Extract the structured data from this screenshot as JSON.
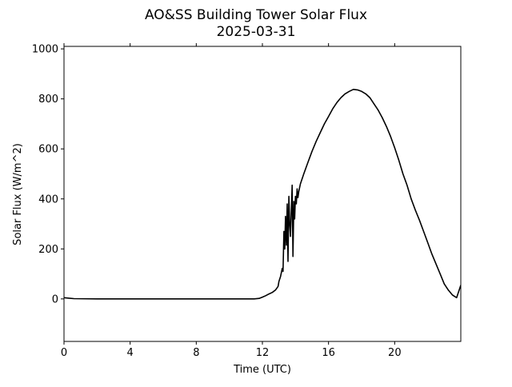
{
  "chart_data": {
    "type": "line",
    "title": "AO&SS Building Tower Solar Flux",
    "subtitle": "2025-03-31",
    "xlabel": "Time (UTC)",
    "ylabel": "Solar Flux (W/m^2)",
    "xlim": [
      0,
      24
    ],
    "ylim": [
      -170,
      1010
    ],
    "xticks": [
      0,
      4,
      8,
      12,
      16,
      20
    ],
    "xtick_labels": [
      "0",
      "4",
      "8",
      "12",
      "16",
      "20"
    ],
    "yticks": [
      0,
      200,
      400,
      600,
      800,
      1000
    ],
    "ytick_labels": [
      "0",
      "200",
      "400",
      "600",
      "800",
      "1000"
    ],
    "grid": false,
    "series": [
      {
        "name": "",
        "color": "#000000",
        "x": [
          0,
          0.3,
          0.6,
          2,
          4,
          6,
          8,
          10,
          11.5,
          11.8,
          12.0,
          12.2,
          12.4,
          12.6,
          12.8,
          12.95,
          13.0,
          13.1,
          13.2,
          13.25,
          13.3,
          13.35,
          13.4,
          13.45,
          13.5,
          13.55,
          13.6,
          13.65,
          13.7,
          13.75,
          13.8,
          13.85,
          13.9,
          13.95,
          14.0,
          14.05,
          14.1,
          14.15,
          14.2,
          14.25,
          14.3,
          14.5,
          14.75,
          15.0,
          15.25,
          15.5,
          15.75,
          16.0,
          16.25,
          16.5,
          16.75,
          17.0,
          17.25,
          17.5,
          17.75,
          18.0,
          18.25,
          18.5,
          18.75,
          19.0,
          19.25,
          19.5,
          19.75,
          20.0,
          20.25,
          20.5,
          20.75,
          21.0,
          21.25,
          21.5,
          21.75,
          22.0,
          22.25,
          22.5,
          22.75,
          23.0,
          23.25,
          23.5,
          23.75,
          24.0
        ],
        "y": [
          5,
          3,
          1,
          0,
          0,
          0,
          0,
          0,
          0,
          2,
          7,
          13,
          20,
          26,
          36,
          50,
          70,
          90,
          122,
          110,
          270,
          200,
          330,
          215,
          380,
          150,
          410,
          300,
          250,
          360,
          455,
          170,
          390,
          320,
          410,
          380,
          440,
          405,
          430,
          445,
          460,
          500,
          545,
          590,
          630,
          665,
          700,
          730,
          760,
          785,
          805,
          820,
          830,
          838,
          836,
          830,
          820,
          805,
          780,
          755,
          725,
          690,
          650,
          605,
          555,
          500,
          455,
          400,
          355,
          315,
          270,
          225,
          180,
          140,
          100,
          60,
          35,
          15,
          5,
          55
        ]
      }
    ]
  }
}
